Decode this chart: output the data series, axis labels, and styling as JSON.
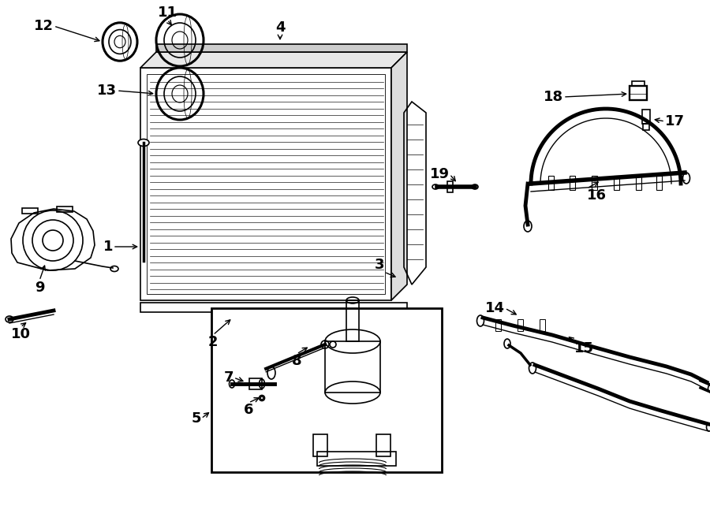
{
  "bg": "#ffffff",
  "lc": "#000000",
  "fs": 13,
  "lw": 1.2
}
